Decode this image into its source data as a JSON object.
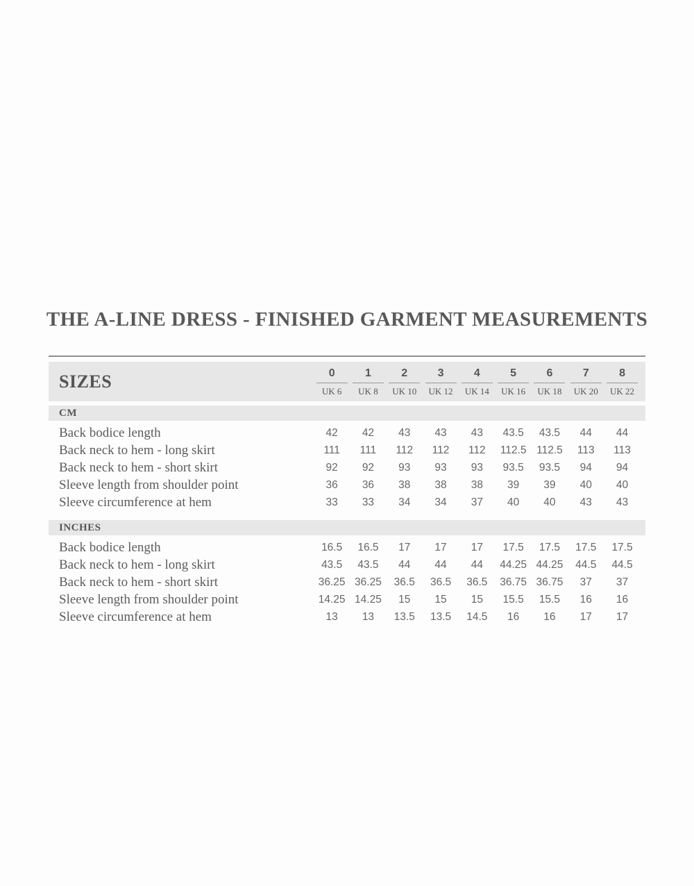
{
  "title": "THE A-LINE DRESS - FINISHED GARMENT MEASUREMENTS",
  "table": {
    "sizes_label": "SIZES",
    "columns": [
      {
        "size": "0",
        "uk": "UK 6"
      },
      {
        "size": "1",
        "uk": "UK 8"
      },
      {
        "size": "2",
        "uk": "UK 10"
      },
      {
        "size": "3",
        "uk": "UK 12"
      },
      {
        "size": "4",
        "uk": "UK 14"
      },
      {
        "size": "5",
        "uk": "UK 16"
      },
      {
        "size": "6",
        "uk": "UK 18"
      },
      {
        "size": "7",
        "uk": "UK 20"
      },
      {
        "size": "8",
        "uk": "UK 22"
      }
    ],
    "sections": [
      {
        "label": "CM",
        "rows": [
          {
            "label": "Back bodice length",
            "values": [
              "42",
              "42",
              "43",
              "43",
              "43",
              "43.5",
              "43.5",
              "44",
              "44"
            ]
          },
          {
            "label": "Back neck to hem - long skirt",
            "values": [
              "111",
              "111",
              "112",
              "112",
              "112",
              "112.5",
              "112.5",
              "113",
              "113"
            ]
          },
          {
            "label": "Back neck to hem - short skirt",
            "values": [
              "92",
              "92",
              "93",
              "93",
              "93",
              "93.5",
              "93.5",
              "94",
              "94"
            ]
          },
          {
            "label": "Sleeve length from shoulder point",
            "values": [
              "36",
              "36",
              "38",
              "38",
              "38",
              "39",
              "39",
              "40",
              "40"
            ]
          },
          {
            "label": "Sleeve circumference at hem",
            "values": [
              "33",
              "33",
              "34",
              "34",
              "37",
              "40",
              "40",
              "43",
              "43"
            ]
          }
        ]
      },
      {
        "label": "INCHES",
        "rows": [
          {
            "label": "Back bodice length",
            "values": [
              "16.5",
              "16.5",
              "17",
              "17",
              "17",
              "17.5",
              "17.5",
              "17.5",
              "17.5"
            ]
          },
          {
            "label": "Back neck to hem - long skirt",
            "values": [
              "43.5",
              "43.5",
              "44",
              "44",
              "44",
              "44.25",
              "44.25",
              "44.5",
              "44.5"
            ]
          },
          {
            "label": "Back neck to hem - short skirt",
            "values": [
              "36.25",
              "36.25",
              "36.5",
              "36.5",
              "36.5",
              "36.75",
              "36.75",
              "37",
              "37"
            ]
          },
          {
            "label": "Sleeve length from shoulder point",
            "values": [
              "14.25",
              "14.25",
              "15",
              "15",
              "15",
              "15.5",
              "15.5",
              "16",
              "16"
            ]
          },
          {
            "label": "Sleeve circumference at hem",
            "values": [
              "13",
              "13",
              "13.5",
              "13.5",
              "14.5",
              "16",
              "16",
              "17",
              "17"
            ]
          }
        ]
      }
    ]
  },
  "colors": {
    "band_background": "#e7e7e7",
    "top_rule": "#8f8f8f",
    "header_underline": "#999999",
    "title_text": "#595959",
    "label_text": "#5c5c5c",
    "value_text": "#666666"
  }
}
